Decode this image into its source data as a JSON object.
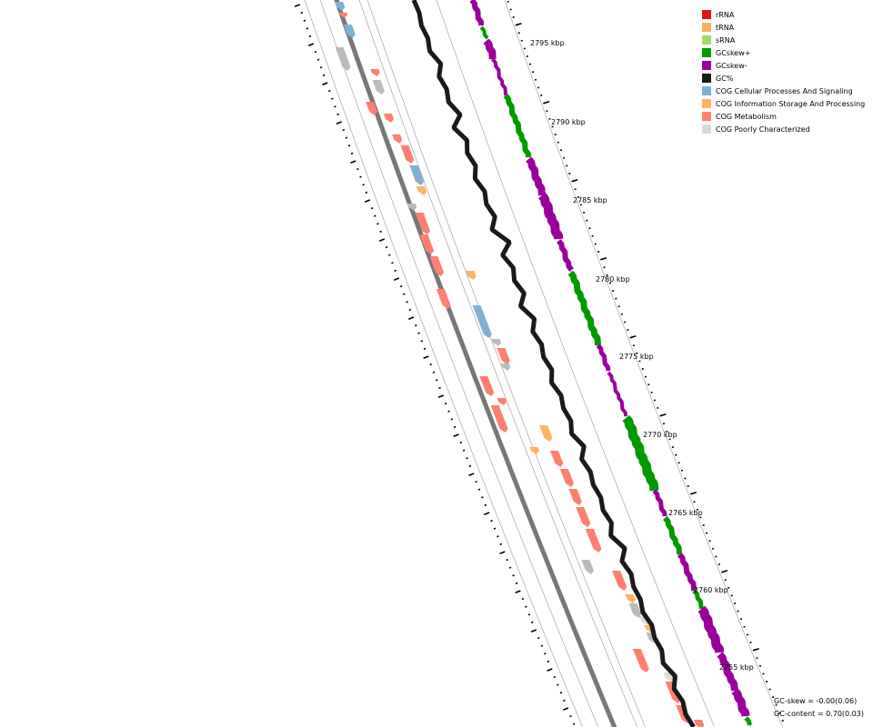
{
  "map": {
    "ticks": [
      {
        "label": "2795 kbp"
      },
      {
        "label": "2790 kbp"
      },
      {
        "label": "2785 kbp"
      },
      {
        "label": "2780 kbp"
      },
      {
        "label": "2775 kbp"
      },
      {
        "label": "2770 kbp"
      },
      {
        "label": "2765 kbp"
      },
      {
        "label": "2760 kbp"
      },
      {
        "label": "2755 kbp"
      }
    ]
  },
  "legend": {
    "items": [
      {
        "label": "rRNA",
        "color": "#d7191c"
      },
      {
        "label": "tRNA",
        "color": "#fdae61"
      },
      {
        "label": "sRNA",
        "color": "#a6d96a"
      },
      {
        "label": "GCskew+",
        "color": "#009900"
      },
      {
        "label": "GCskew-",
        "color": "#990099"
      },
      {
        "label": "GC%",
        "color": "#1a1a1a"
      },
      {
        "label": "COG Cellular Processes And Signaling",
        "color": "#80b1d3"
      },
      {
        "label": "COG Information Storage And Processing",
        "color": "#fdb462"
      },
      {
        "label": "COG Metabolism",
        "color": "#fb8072"
      },
      {
        "label": "COG Poorly Characterized",
        "color": "#d9d9d9"
      }
    ]
  },
  "stats": {
    "gc_skew": "GC-skew = -0.00(0.06)",
    "gc_content": "GC-content = 0.70(0.03)"
  }
}
